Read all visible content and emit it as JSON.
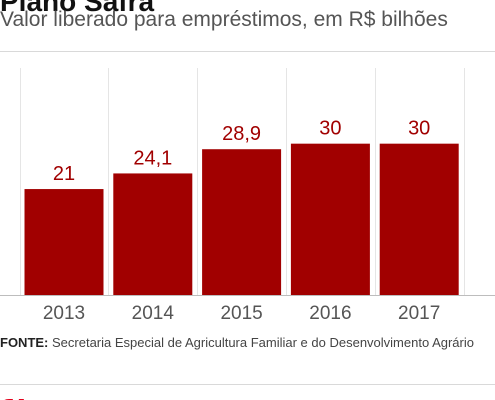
{
  "header": {
    "title": "Plano Safra",
    "subtitle": "Valor liberado para empréstimos, em R$ bilhões"
  },
  "chart_data": {
    "type": "bar",
    "categories": [
      "2013",
      "2014",
      "2015",
      "2016",
      "2017"
    ],
    "values": [
      21,
      24.1,
      28.9,
      30,
      30
    ],
    "value_labels": [
      "21",
      "24,1",
      "28,9",
      "30",
      "30"
    ],
    "title": "Valor liberado para empréstimos, em R$ bilhões",
    "xlabel": "",
    "ylabel": "",
    "ylim": [
      0,
      45
    ],
    "grid": true,
    "bar_color": "#a10000"
  },
  "source": {
    "label": "FONTE:",
    "text": " Secretaria Especial de Agricultura Familiar e do Desenvolvimento Agrário"
  },
  "colors": {
    "accent": "#a10000",
    "logo": "#e3001b"
  },
  "logo": {
    "icon": "g1-logo-icon"
  }
}
